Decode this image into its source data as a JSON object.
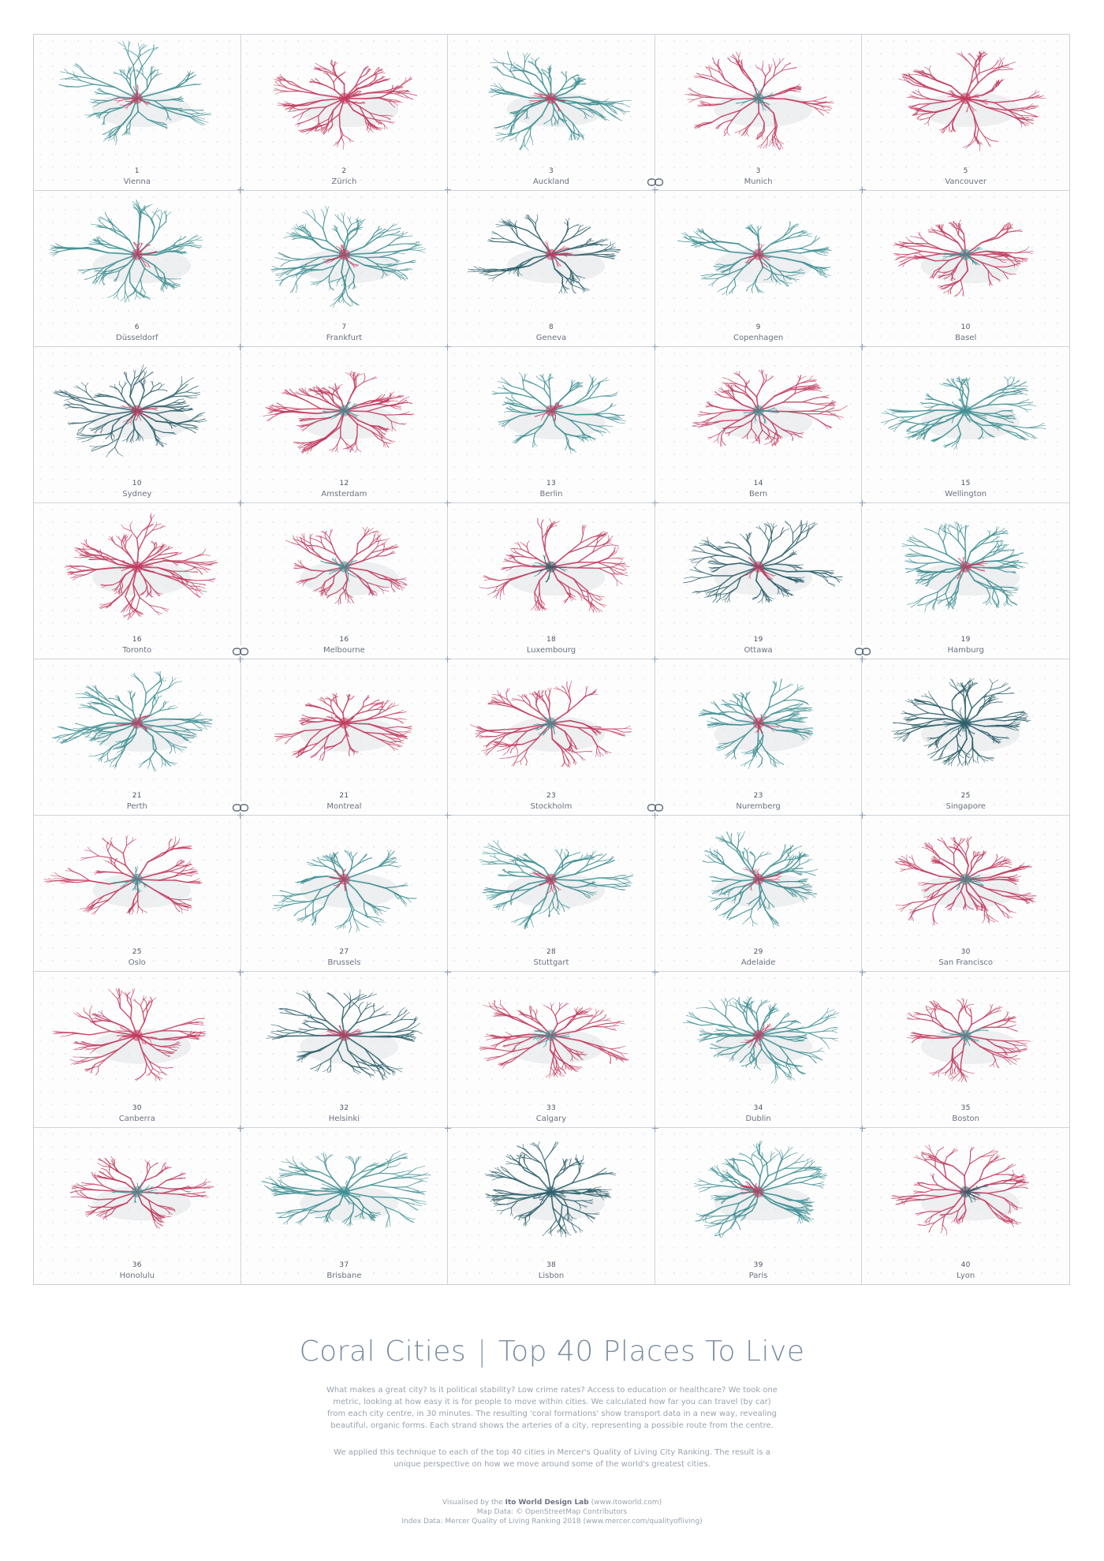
{
  "poster": {
    "title_left": "Coral Cities",
    "title_sep": "|",
    "title_right": "Top 40 Places To Live",
    "paragraph1": "What makes a great city? Is it political stability? Low crime rates? Access to education or healthcare? We took one metric, looking at how easy it is for people to move within cities. We calculated how far you can travel (by car) from each city centre, in 30 minutes. The resulting 'coral formations' show transport data in a new way, revealing beautiful, organic forms. Each strand shows the arteries of a city, representing a possible route from the centre.",
    "paragraph2": "We applied this technique to each of the top 40 cities in Mercer's Quality of Living City Ranking. The result is a unique perspective on how we move around some of the world's greatest cities.",
    "credit_prefix": "Visualised by the",
    "credit_lab": "Ito World Design Lab",
    "credit_suffix": "(www.itoworld.com)",
    "map_data": "Map Data: © OpenStreetMap Contributors",
    "index_data": "Index Data: Mercer Quality of Living Ranking 2018 (www.mercer.com/qualityofliving)"
  },
  "colors": {
    "teal": "#3f8f92",
    "dark_teal": "#2d5f6a",
    "pink": "#c23a5e"
  },
  "cities": [
    {
      "rank": "1",
      "name": "Vienna",
      "color": "teal",
      "center": "pink"
    },
    {
      "rank": "2",
      "name": "Zürich",
      "color": "pink",
      "center": "pink"
    },
    {
      "rank": "3",
      "name": "Auckland",
      "color": "teal",
      "center": "pink"
    },
    {
      "rank": "3",
      "name": "Munich",
      "color": "pink",
      "center": "teal"
    },
    {
      "rank": "5",
      "name": "Vancouver",
      "color": "pink",
      "center": "pink"
    },
    {
      "rank": "6",
      "name": "Düsseldorf",
      "color": "teal",
      "center": "pink"
    },
    {
      "rank": "7",
      "name": "Frankfurt",
      "color": "teal",
      "center": "pink"
    },
    {
      "rank": "8",
      "name": "Geneva",
      "color": "dark_teal",
      "center": "pink"
    },
    {
      "rank": "9",
      "name": "Copenhagen",
      "color": "teal",
      "center": "pink"
    },
    {
      "rank": "10",
      "name": "Basel",
      "color": "pink",
      "center": "teal"
    },
    {
      "rank": "10",
      "name": "Sydney",
      "color": "dark_teal",
      "center": "pink"
    },
    {
      "rank": "12",
      "name": "Amsterdam",
      "color": "pink",
      "center": "teal"
    },
    {
      "rank": "13",
      "name": "Berlin",
      "color": "teal",
      "center": "pink"
    },
    {
      "rank": "14",
      "name": "Bern",
      "color": "pink",
      "center": "teal"
    },
    {
      "rank": "15",
      "name": "Wellington",
      "color": "teal",
      "center": "teal"
    },
    {
      "rank": "16",
      "name": "Toronto",
      "color": "pink",
      "center": "pink"
    },
    {
      "rank": "16",
      "name": "Melbourne",
      "color": "pink",
      "center": "teal"
    },
    {
      "rank": "18",
      "name": "Luxembourg",
      "color": "pink",
      "center": "dark_teal"
    },
    {
      "rank": "19",
      "name": "Ottawa",
      "color": "dark_teal",
      "center": "pink"
    },
    {
      "rank": "19",
      "name": "Hamburg",
      "color": "teal",
      "center": "pink"
    },
    {
      "rank": "21",
      "name": "Perth",
      "color": "teal",
      "center": "pink"
    },
    {
      "rank": "21",
      "name": "Montreal",
      "color": "pink",
      "center": "pink"
    },
    {
      "rank": "23",
      "name": "Stockholm",
      "color": "pink",
      "center": "teal"
    },
    {
      "rank": "23",
      "name": "Nuremberg",
      "color": "teal",
      "center": "pink"
    },
    {
      "rank": "25",
      "name": "Singapore",
      "color": "dark_teal",
      "center": "dark_teal"
    },
    {
      "rank": "25",
      "name": "Oslo",
      "color": "pink",
      "center": "teal"
    },
    {
      "rank": "27",
      "name": "Brussels",
      "color": "teal",
      "center": "pink"
    },
    {
      "rank": "28",
      "name": "Stuttgart",
      "color": "teal",
      "center": "pink"
    },
    {
      "rank": "29",
      "name": "Adelaide",
      "color": "teal",
      "center": "pink"
    },
    {
      "rank": "30",
      "name": "San Francisco",
      "color": "pink",
      "center": "teal"
    },
    {
      "rank": "30",
      "name": "Canberra",
      "color": "pink",
      "center": "pink"
    },
    {
      "rank": "32",
      "name": "Helsinki",
      "color": "dark_teal",
      "center": "pink"
    },
    {
      "rank": "33",
      "name": "Calgary",
      "color": "pink",
      "center": "teal"
    },
    {
      "rank": "34",
      "name": "Dublin",
      "color": "teal",
      "center": "pink"
    },
    {
      "rank": "35",
      "name": "Boston",
      "color": "pink",
      "center": "teal"
    },
    {
      "rank": "36",
      "name": "Honolulu",
      "color": "pink",
      "center": "teal"
    },
    {
      "rank": "37",
      "name": "Brisbane",
      "color": "teal",
      "center": "teal"
    },
    {
      "rank": "38",
      "name": "Lisbon",
      "color": "dark_teal",
      "center": "dark_teal"
    },
    {
      "rank": "39",
      "name": "Paris",
      "color": "teal",
      "center": "pink"
    },
    {
      "rank": "40",
      "name": "Lyon",
      "color": "pink",
      "center": "dark_teal"
    }
  ]
}
